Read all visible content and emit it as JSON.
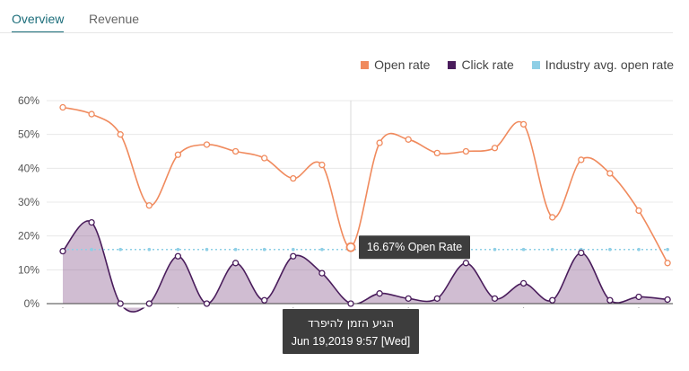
{
  "tabs": [
    {
      "label": "Overview",
      "active": true
    },
    {
      "label": "Revenue",
      "active": false
    }
  ],
  "legend": [
    {
      "label": "Open rate",
      "color": "#f08a5d"
    },
    {
      "label": "Click rate",
      "color": "#4a1d5c"
    },
    {
      "label": "Industry avg. open rate",
      "color": "#8ecfe6"
    }
  ],
  "chart_data": {
    "type": "line",
    "ylim": [
      0,
      60
    ],
    "yticks": [
      "60%",
      "50%",
      "40%",
      "30%",
      "20%",
      "10%",
      "0%"
    ],
    "ytick_values": [
      60,
      50,
      40,
      30,
      20,
      10,
      0
    ],
    "series": [
      {
        "name": "Open rate",
        "color": "#f08a5d",
        "values": [
          58,
          56,
          50,
          29,
          44,
          47,
          45,
          43,
          37,
          41,
          16.67,
          47.5,
          48.5,
          44.5,
          45,
          46,
          53,
          25.5,
          42.5,
          38.5,
          27.5,
          12
        ]
      },
      {
        "name": "Click rate",
        "color": "#4a1d5c",
        "values": [
          15.5,
          24,
          0,
          0,
          14,
          0,
          12,
          1,
          14,
          9,
          0,
          3,
          1.5,
          1.5,
          12,
          1.5,
          6,
          1,
          15,
          1,
          2,
          1.2
        ]
      },
      {
        "name": "Industry avg. open rate",
        "color": "#8ecfe6",
        "values": [
          16,
          16,
          16,
          16,
          16,
          16,
          16,
          16,
          16,
          16,
          16,
          16,
          16,
          16,
          16,
          16,
          16,
          16,
          16,
          16,
          16,
          16
        ]
      }
    ],
    "highlight_index": 10,
    "tooltip_text": "16.67% Open Rate",
    "date_tooltip": {
      "line1": "הגיע הזמן להיפרד",
      "line2": "Jun 19,2019 9:57 [Wed]"
    }
  }
}
